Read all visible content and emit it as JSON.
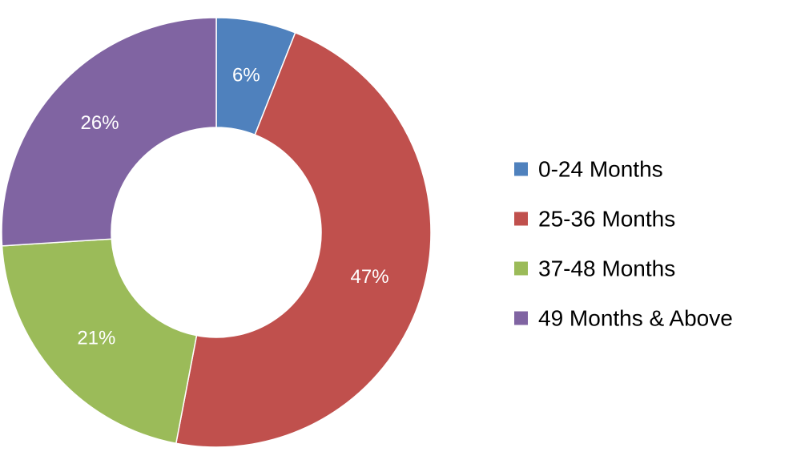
{
  "chart_data": {
    "type": "pie",
    "donut": true,
    "categories": [
      "0-24 Months",
      "25-36 Months",
      "37-48 Months",
      "49 Months & Above"
    ],
    "values": [
      6,
      47,
      21,
      26
    ],
    "data_labels": [
      "6%",
      "47%",
      "21%",
      "26%"
    ],
    "colors": [
      "#4f81bd",
      "#c0504d",
      "#9bbb59",
      "#8064a2"
    ],
    "legend_position": "right",
    "title": "",
    "start_angle_deg": 0,
    "direction": "clockwise"
  }
}
